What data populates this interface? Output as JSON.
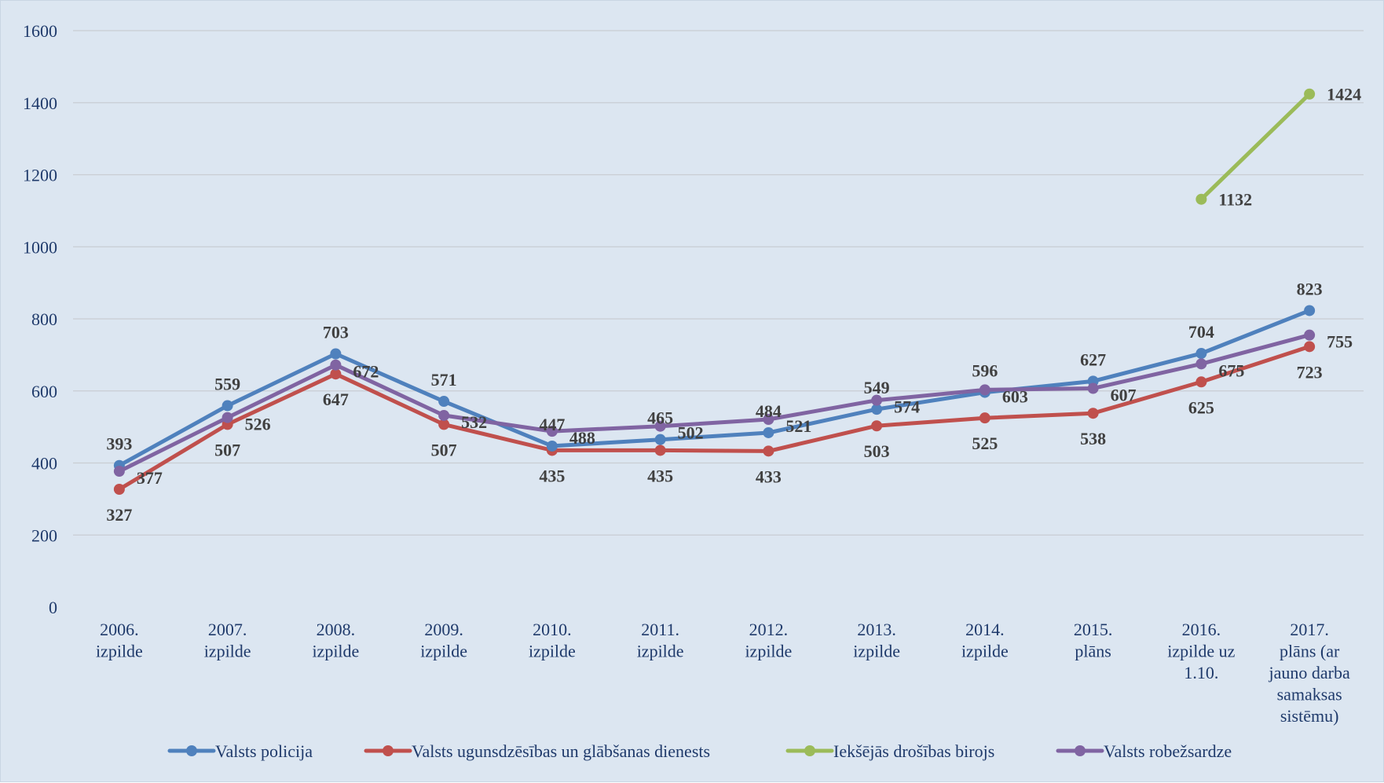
{
  "chart_data": {
    "type": "line",
    "title": "",
    "xlabel": "",
    "ylabel": "",
    "ylim": [
      0,
      1600
    ],
    "yticks": [
      0,
      200,
      400,
      600,
      800,
      1000,
      1200,
      1400,
      1600
    ],
    "grid": true,
    "legend_position": "bottom",
    "categories": [
      [
        "2006.",
        "izpilde"
      ],
      [
        "2007.",
        "izpilde"
      ],
      [
        "2008.",
        "izpilde"
      ],
      [
        "2009.",
        "izpilde"
      ],
      [
        "2010.",
        "izpilde"
      ],
      [
        "2011.",
        "izpilde"
      ],
      [
        "2012.",
        "izpilde"
      ],
      [
        "2013.",
        "izpilde"
      ],
      [
        "2014.",
        "izpilde"
      ],
      [
        "2015.",
        "plāns"
      ],
      [
        "2016.",
        "izpilde uz",
        "1.10."
      ],
      [
        "2017.",
        "plāns (ar",
        "jauno darba",
        "samaksas",
        "sistēmu)"
      ]
    ],
    "series": [
      {
        "name": "Valsts policija",
        "color": "#4f81bd",
        "values": [
          393,
          559,
          703,
          571,
          447,
          465,
          484,
          549,
          596,
          627,
          704,
          823
        ]
      },
      {
        "name": "Valsts ugunsdzēsības un glābšanas dienests",
        "color": "#c0504d",
        "values": [
          327,
          507,
          647,
          507,
          435,
          435,
          433,
          503,
          525,
          538,
          625,
          723
        ]
      },
      {
        "name": "Iekšējās drošības birojs",
        "color": "#9bbb59",
        "values": [
          null,
          null,
          null,
          null,
          null,
          null,
          null,
          null,
          null,
          null,
          1132,
          1424
        ]
      },
      {
        "name": "Valsts robežsardze",
        "color": "#8064a2",
        "values": [
          377,
          526,
          672,
          532,
          488,
          502,
          521,
          574,
          603,
          607,
          675,
          755
        ]
      }
    ]
  }
}
